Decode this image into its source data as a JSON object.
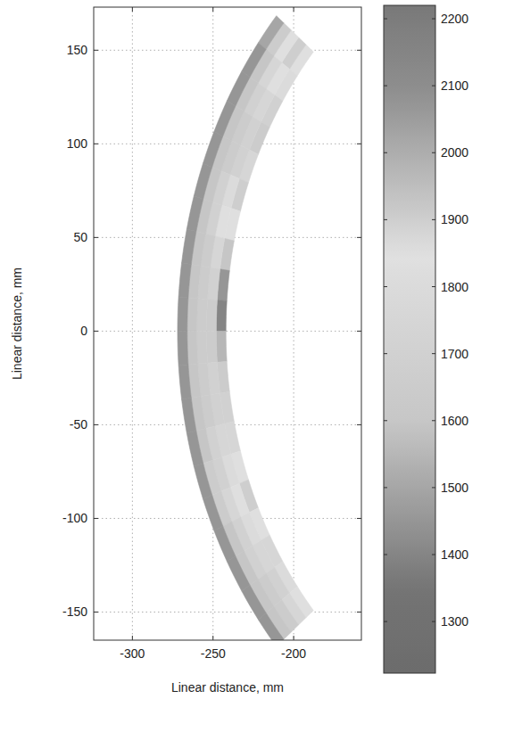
{
  "chart_data": {
    "type": "heatmap",
    "x_label": "Linear distance, mm",
    "y_label": "Linear distance, mm",
    "xlim": [
      -324,
      -158
    ],
    "ylim": [
      -165,
      173
    ],
    "xticks": [
      -300,
      -250,
      -200
    ],
    "yticks": [
      -150,
      -100,
      -50,
      0,
      50,
      100,
      150
    ],
    "grid": true,
    "cells": {
      "center": [
        -10,
        0
      ],
      "r_edges": [
        232,
        238,
        244,
        250,
        256,
        262
      ],
      "theta_edges": [
        140,
        144,
        148,
        152,
        156,
        160,
        164,
        168,
        172,
        176,
        180,
        184,
        188,
        192,
        196,
        200,
        204,
        208,
        212,
        216,
        220
      ],
      "values": [
        [
          1850,
          1800,
          1700,
          1650,
          1750,
          1900,
          1850,
          1600,
          1450,
          1400,
          1550,
          1650,
          1700,
          1750,
          1850,
          1900,
          1850,
          1750,
          1800,
          1850
        ],
        [
          1900,
          1850,
          1750,
          1700,
          1700,
          1800,
          1850,
          1750,
          1700,
          1650,
          1650,
          1700,
          1700,
          1750,
          1800,
          1850,
          1800,
          1750,
          1700,
          1750
        ],
        [
          1850,
          1750,
          1700,
          1650,
          1650,
          1700,
          1700,
          1650,
          1650,
          1650,
          1650,
          1650,
          1650,
          1700,
          1700,
          1750,
          1700,
          1700,
          1650,
          1650
        ],
        [
          1650,
          1600,
          1600,
          1600,
          1600,
          1600,
          1600,
          1600,
          1600,
          1600,
          1600,
          1600,
          1600,
          1600,
          1650,
          1650,
          1600,
          1600,
          1600,
          1600
        ],
        [
          1500,
          1450,
          1450,
          1450,
          1450,
          1450,
          1450,
          1450,
          1450,
          1450,
          1450,
          1450,
          1450,
          1450,
          1450,
          1450,
          1450,
          1450,
          1450,
          1450
        ]
      ]
    },
    "colorbar": {
      "range": [
        1223,
        2220
      ],
      "ticks": [
        1300,
        1400,
        1500,
        1600,
        1700,
        1800,
        1900,
        2000,
        2100,
        2200
      ]
    }
  }
}
